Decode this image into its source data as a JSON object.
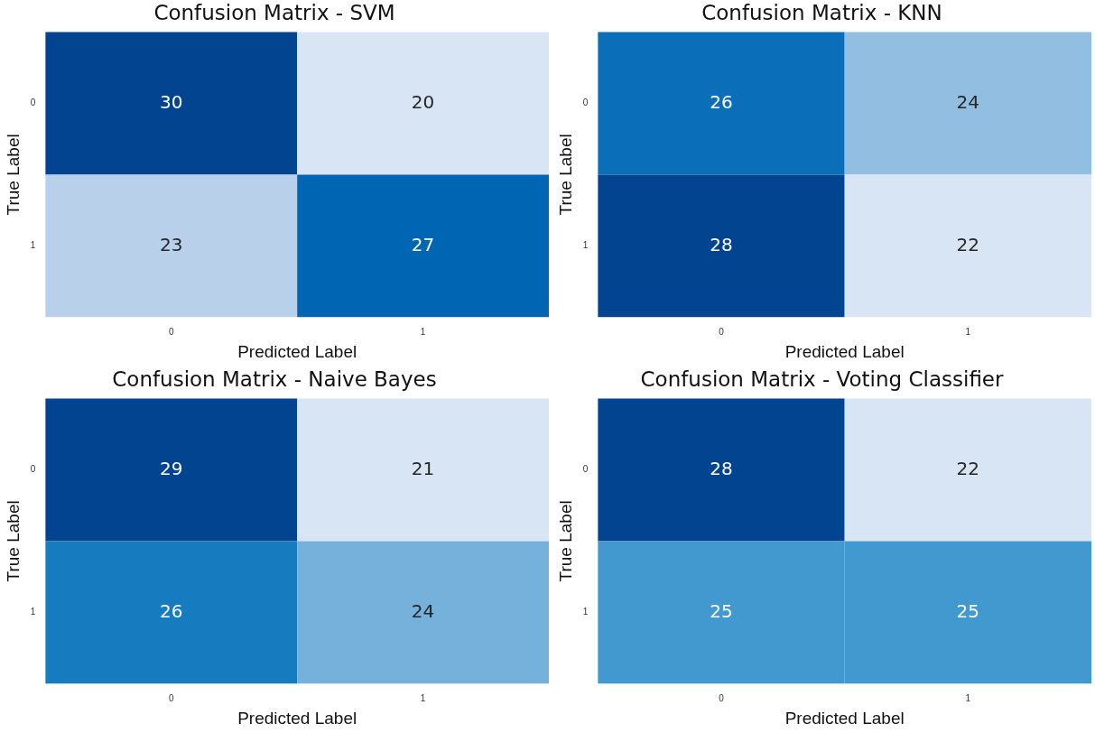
{
  "chart_data": [
    {
      "type": "heatmap",
      "title": "Confusion Matrix - SVM",
      "xlabel": "Predicted Label",
      "ylabel": "True Label",
      "categories": [
        "0",
        "1"
      ],
      "y_categories": [
        "0",
        "1"
      ],
      "cells": [
        [
          30,
          20
        ],
        [
          23,
          27
        ]
      ],
      "data_labels": true
    },
    {
      "type": "heatmap",
      "title": "Confusion Matrix - KNN",
      "xlabel": "Predicted Label",
      "ylabel": "True Label",
      "categories": [
        "0",
        "1"
      ],
      "y_categories": [
        "0",
        "1"
      ],
      "cells": [
        [
          26,
          24
        ],
        [
          28,
          22
        ]
      ],
      "data_labels": true
    },
    {
      "type": "heatmap",
      "title": "Confusion Matrix - Naive Bayes",
      "xlabel": "Predicted Label",
      "ylabel": "True Label",
      "categories": [
        "0",
        "1"
      ],
      "y_categories": [
        "0",
        "1"
      ],
      "cells": [
        [
          29,
          21
        ],
        [
          26,
          24
        ]
      ],
      "data_labels": true
    },
    {
      "type": "heatmap",
      "title": "Confusion Matrix - Voting Classifier",
      "xlabel": "Predicted Label",
      "ylabel": "True Label",
      "categories": [
        "0",
        "1"
      ],
      "y_categories": [
        "0",
        "1"
      ],
      "cells": [
        [
          28,
          22
        ],
        [
          25,
          25
        ]
      ],
      "data_labels": true
    }
  ]
}
